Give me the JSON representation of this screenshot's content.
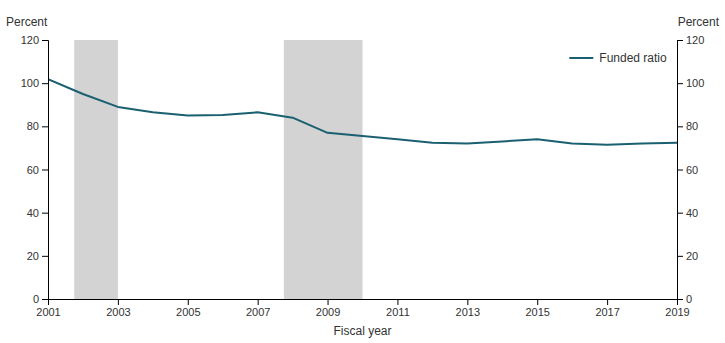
{
  "chart_data": {
    "type": "line",
    "x": [
      2001,
      2002,
      2003,
      2004,
      2005,
      2006,
      2007,
      2008,
      2009,
      2010,
      2011,
      2012,
      2013,
      2014,
      2015,
      2016,
      2017,
      2018,
      2019
    ],
    "series": [
      {
        "name": "Funded ratio",
        "color": "#1a6070",
        "values": [
          101.9,
          95.0,
          89.0,
          86.5,
          85.0,
          85.2,
          86.5,
          84.0,
          77.0,
          75.5,
          74.0,
          72.4,
          72.0,
          73.0,
          74.0,
          72.0,
          71.5,
          72.0,
          72.4
        ]
      }
    ],
    "bands": [
      {
        "start": 2001.75,
        "end": 2003.0
      },
      {
        "start": 2007.75,
        "end": 2010.0
      }
    ],
    "xlabel": "Fiscal year",
    "ylabel": "Percent",
    "y2label": "Percent",
    "xlim": [
      2001,
      2019
    ],
    "xticks": [
      2001,
      2003,
      2005,
      2007,
      2009,
      2011,
      2013,
      2015,
      2017,
      2019
    ],
    "ylim": [
      0,
      120
    ],
    "yticks": [
      0,
      20,
      40,
      60,
      80,
      100,
      120
    ],
    "y2lim": [
      0,
      120
    ],
    "y2ticks": [
      0,
      20,
      40,
      60,
      80,
      100,
      120
    ],
    "grid": false,
    "legend": "upper right"
  }
}
